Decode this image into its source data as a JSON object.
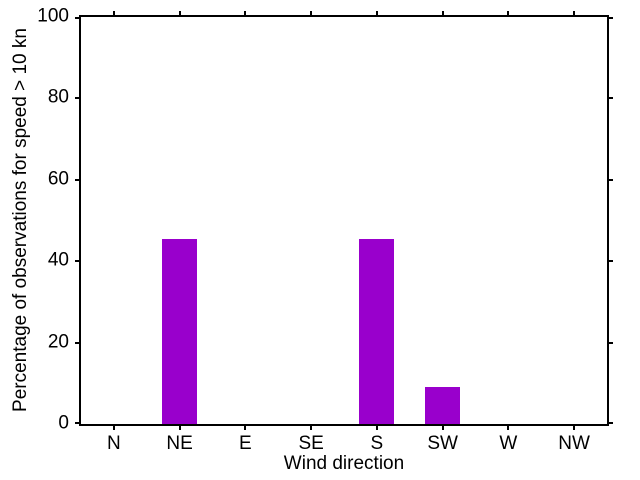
{
  "figure": {
    "background": "#ffffff",
    "text_color": "#000000"
  },
  "chart_data": {
    "type": "bar",
    "categories": [
      "N",
      "NE",
      "E",
      "SE",
      "S",
      "SW",
      "W",
      "NW"
    ],
    "values": [
      0,
      45.45,
      0,
      0,
      45.45,
      9.09,
      0,
      0
    ],
    "title": "",
    "xlabel": "Wind direction",
    "ylabel": "Percentage of observations for speed > 10 kn",
    "ylim": [
      0,
      100
    ],
    "yticks": [
      0,
      20,
      40,
      60,
      80,
      100
    ],
    "bar_color": "#9900cc",
    "axis_color": "#000000",
    "grid": false,
    "legend_position": "none",
    "tick_style": "outward-mirrored-frame"
  }
}
